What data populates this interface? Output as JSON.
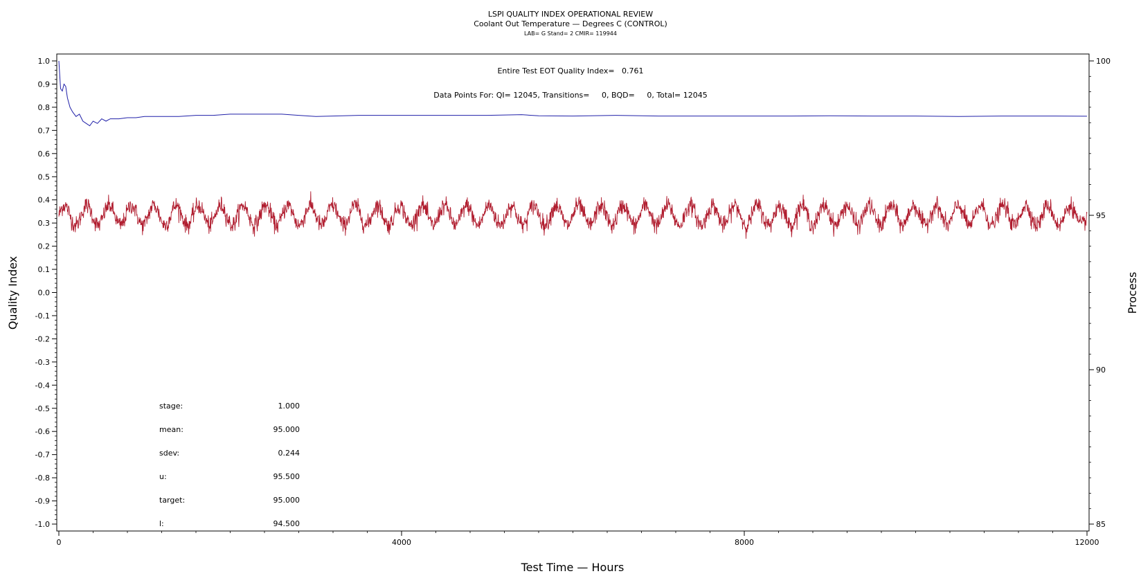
{
  "header": {
    "title": "LSPI QUALITY INDEX OPERATIONAL REVIEW",
    "subtitle": "Coolant Out Temperature — Degrees C (CONTROL)",
    "subsubtitle": "LAB= G Stand= 2 CMIR= 119944"
  },
  "annotations": {
    "eot": "Entire Test EOT Quality Index=   0.761",
    "datapoints": "Data Points For: QI= 12045, Transitions=     0, BQD=     0, Total= 12045"
  },
  "stats": [
    {
      "label": "stage:",
      "value": "1.000"
    },
    {
      "label": "mean:",
      "value": "95.000"
    },
    {
      "label": "sdev:",
      "value": "0.244"
    },
    {
      "label": "u:",
      "value": "95.500"
    },
    {
      "label": "target:",
      "value": "95.000"
    },
    {
      "label": "l:",
      "value": "94.500"
    }
  ],
  "chart_data": {
    "type": "line",
    "xlabel": "Test Time — Hours",
    "ylabel": "Quality Index",
    "y2label": "Process",
    "xlim": [
      0,
      12000
    ],
    "ylim": [
      -1.0,
      1.0
    ],
    "y2lim": [
      85,
      100
    ],
    "x_ticks": [
      0,
      4000,
      8000,
      12000
    ],
    "y_ticks": [
      -1.0,
      -0.9,
      -0.8,
      -0.7,
      -0.6,
      -0.5,
      -0.4,
      -0.3,
      -0.2,
      -0.1,
      0.0,
      0.1,
      0.2,
      0.3,
      0.4,
      0.5,
      0.6,
      0.7,
      0.8,
      0.9,
      1.0
    ],
    "y2_ticks": [
      85,
      90,
      95,
      100
    ],
    "series": [
      {
        "axis": "left",
        "color": "#1f1fa8",
        "x": [
          0,
          20,
          40,
          60,
          80,
          100,
          130,
          160,
          200,
          240,
          280,
          320,
          360,
          400,
          450,
          500,
          550,
          600,
          700,
          800,
          900,
          1000,
          1200,
          1400,
          1600,
          1800,
          2000,
          2200,
          2400,
          2600,
          2800,
          3000,
          3500,
          4000,
          4500,
          5000,
          5400,
          5600,
          6000,
          6500,
          7000,
          7500,
          8000,
          8500,
          9000,
          9500,
          10000,
          10500,
          11000,
          11500,
          12000
        ],
        "y": [
          1.0,
          0.88,
          0.87,
          0.9,
          0.89,
          0.84,
          0.8,
          0.78,
          0.76,
          0.77,
          0.74,
          0.73,
          0.72,
          0.74,
          0.73,
          0.75,
          0.74,
          0.75,
          0.75,
          0.755,
          0.755,
          0.76,
          0.76,
          0.76,
          0.765,
          0.765,
          0.77,
          0.77,
          0.77,
          0.77,
          0.765,
          0.76,
          0.765,
          0.765,
          0.765,
          0.765,
          0.768,
          0.763,
          0.762,
          0.765,
          0.762,
          0.762,
          0.762,
          0.762,
          0.763,
          0.762,
          0.762,
          0.76,
          0.762,
          0.762,
          0.761
        ]
      },
      {
        "axis": "right",
        "color": "#b01c2e",
        "description": "Coolant Out Temperature",
        "x_range": [
          0,
          12000
        ],
        "mean": 95.0,
        "cycles": 46,
        "cycle_amplitude": 0.32,
        "noise_sdev": 0.14,
        "min": 94.2,
        "max": 95.9
      }
    ]
  }
}
